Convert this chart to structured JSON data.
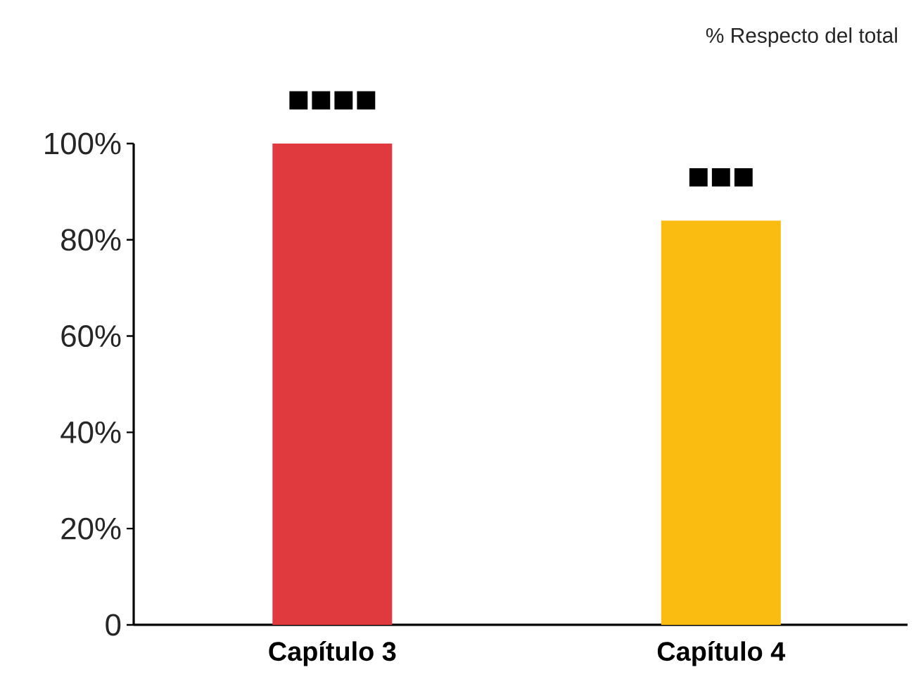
{
  "chart_data": {
    "type": "bar",
    "ylabel": "% Respecto del total",
    "categories": [
      "Capítulo 3",
      "Capítulo 4"
    ],
    "values": [
      100,
      84
    ],
    "colors": [
      "#e0393e",
      "#fbbc12"
    ],
    "value_labels": [
      "■■■■",
      "■■■"
    ],
    "ylim": [
      0,
      100
    ],
    "yticks": [
      {
        "value": 0,
        "label": "0"
      },
      {
        "value": 20,
        "label": "20%"
      },
      {
        "value": 40,
        "label": "40%"
      },
      {
        "value": 60,
        "label": "60%"
      },
      {
        "value": 80,
        "label": "80%"
      },
      {
        "value": 100,
        "label": "100%"
      }
    ],
    "grid": false
  }
}
